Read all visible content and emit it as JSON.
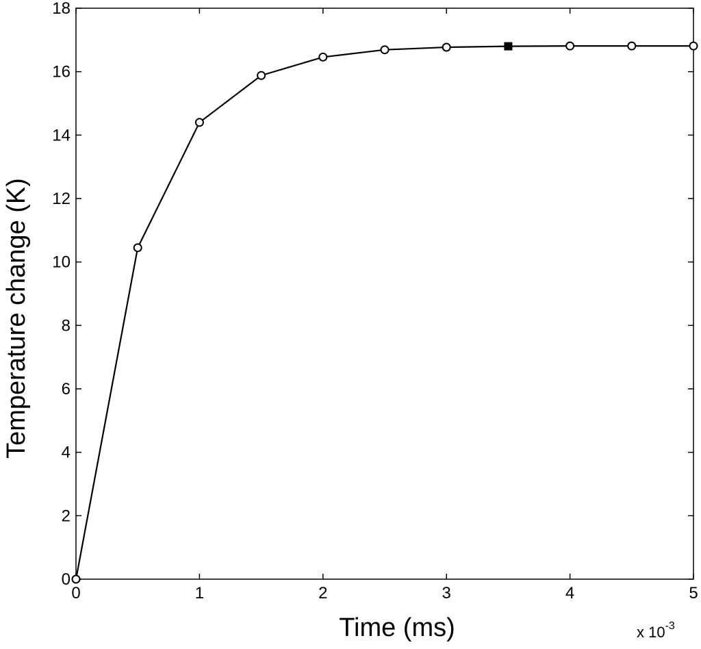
{
  "chart_data": {
    "type": "line",
    "title": "",
    "xlabel": "Time (ms)",
    "ylabel": "Temperature change (K)",
    "x_multiplier_label": {
      "base": "x 10",
      "exponent": "-3"
    },
    "xlim": [
      0,
      5
    ],
    "ylim": [
      0,
      18
    ],
    "x_ticks": [
      0,
      1,
      2,
      3,
      4,
      5
    ],
    "y_ticks": [
      0,
      2,
      4,
      6,
      8,
      10,
      12,
      14,
      16,
      18
    ],
    "grid": false,
    "series": [
      {
        "x": [
          0,
          0.5,
          1,
          1.5,
          2,
          2.5,
          3,
          3.5,
          4,
          4.5,
          5
        ],
        "y": [
          0,
          10.45,
          14.4,
          15.88,
          16.46,
          16.69,
          16.77,
          16.8,
          16.81,
          16.81,
          16.81
        ],
        "marker": "circle",
        "highlight_index": 7,
        "highlight_marker": "filled-square",
        "color": "#000000"
      }
    ]
  }
}
